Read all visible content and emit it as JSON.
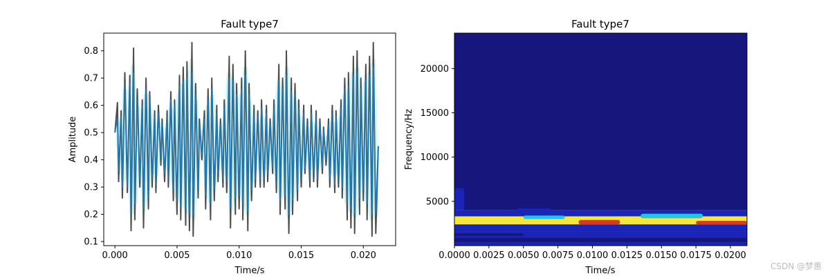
{
  "chart_data": [
    {
      "type": "line",
      "title": "Fault type7",
      "xlabel": "Time/s",
      "ylabel": "Amplitude",
      "xlim": [
        -0.0009,
        0.0226
      ],
      "ylim": [
        0.085,
        0.865
      ],
      "x_ticks": [
        0.0,
        0.005,
        0.01,
        0.015,
        0.02
      ],
      "x_tick_labels": [
        "0.000",
        "0.005",
        "0.010",
        "0.015",
        "0.020"
      ],
      "y_ticks": [
        0.1,
        0.2,
        0.3,
        0.4,
        0.5,
        0.6,
        0.7,
        0.8
      ],
      "y_tick_labels": [
        "0.1",
        "0.2",
        "0.3",
        "0.4",
        "0.5",
        "0.6",
        "0.7",
        "0.8"
      ],
      "grid": false,
      "series": [
        {
          "color": "#4d4d4d",
          "x": [
            0.0,
            0.0002,
            0.0003,
            0.0005,
            0.0006,
            0.0008,
            0.001,
            0.0012,
            0.0013,
            0.0015,
            0.0016,
            0.0018,
            0.002,
            0.0022,
            0.0023,
            0.0025,
            0.0027,
            0.0028,
            0.003,
            0.0032,
            0.0033,
            0.0035,
            0.0037,
            0.0038,
            0.004,
            0.0042,
            0.0043,
            0.0045,
            0.0047,
            0.0048,
            0.005,
            0.0052,
            0.0053,
            0.0055,
            0.0057,
            0.0058,
            0.006,
            0.0062,
            0.0063,
            0.0065,
            0.0067,
            0.0068,
            0.007,
            0.0072,
            0.0073,
            0.0075,
            0.0077,
            0.0078,
            0.008,
            0.0082,
            0.0083,
            0.0085,
            0.0087,
            0.0088,
            0.009,
            0.0092,
            0.0093,
            0.0095,
            0.0097,
            0.0098,
            0.01,
            0.0102,
            0.0103,
            0.0105,
            0.0107,
            0.0108,
            0.011,
            0.0112,
            0.0113,
            0.0115,
            0.0117,
            0.0118,
            0.012,
            0.0122,
            0.0123,
            0.0125,
            0.0127,
            0.0128,
            0.013,
            0.0132,
            0.0133,
            0.0135,
            0.0137,
            0.0138,
            0.014,
            0.0142,
            0.0143,
            0.0145,
            0.0147,
            0.0148,
            0.015,
            0.0152,
            0.0153,
            0.0155,
            0.0157,
            0.0158,
            0.016,
            0.0162,
            0.0163,
            0.0165,
            0.0167,
            0.0168,
            0.017,
            0.0172,
            0.0173,
            0.0175,
            0.0177,
            0.0178,
            0.018,
            0.0182,
            0.0183,
            0.0185,
            0.0187,
            0.0188,
            0.019,
            0.0192,
            0.0193,
            0.0195,
            0.0197,
            0.0198,
            0.02,
            0.0202,
            0.0203,
            0.0205,
            0.0207,
            0.0208,
            0.021,
            0.0212
          ],
          "y": [
            0.5,
            0.61,
            0.32,
            0.58,
            0.26,
            0.72,
            0.28,
            0.71,
            0.14,
            0.81,
            0.18,
            0.66,
            0.3,
            0.62,
            0.15,
            0.7,
            0.22,
            0.65,
            0.3,
            0.58,
            0.28,
            0.6,
            0.38,
            0.55,
            0.32,
            0.58,
            0.3,
            0.65,
            0.25,
            0.62,
            0.2,
            0.71,
            0.18,
            0.74,
            0.16,
            0.76,
            0.14,
            0.83,
            0.12,
            0.68,
            0.26,
            0.55,
            0.4,
            0.58,
            0.22,
            0.66,
            0.18,
            0.7,
            0.25,
            0.6,
            0.32,
            0.55,
            0.3,
            0.62,
            0.28,
            0.78,
            0.15,
            0.75,
            0.2,
            0.68,
            0.22,
            0.7,
            0.18,
            0.8,
            0.14,
            0.68,
            0.25,
            0.6,
            0.3,
            0.58,
            0.3,
            0.62,
            0.3,
            0.6,
            0.32,
            0.55,
            0.35,
            0.62,
            0.28,
            0.75,
            0.2,
            0.7,
            0.22,
            0.8,
            0.13,
            0.7,
            0.2,
            0.68,
            0.25,
            0.62,
            0.3,
            0.6,
            0.35,
            0.55,
            0.3,
            0.6,
            0.32,
            0.58,
            0.3,
            0.55,
            0.35,
            0.52,
            0.38,
            0.55,
            0.3,
            0.6,
            0.28,
            0.58,
            0.3,
            0.62,
            0.26,
            0.7,
            0.18,
            0.72,
            0.15,
            0.78,
            0.13,
            0.8,
            0.2,
            0.7,
            0.25,
            0.75,
            0.18,
            0.78,
            0.12,
            0.83,
            0.13,
            0.45
          ]
        },
        {
          "color": "#1f77b4",
          "x": [
            0.0,
            0.0002,
            0.0003,
            0.0005,
            0.0006,
            0.0008,
            0.001,
            0.0012,
            0.0013,
            0.0015,
            0.0016,
            0.0018,
            0.002,
            0.0022,
            0.0023,
            0.0025,
            0.0027,
            0.0028,
            0.003,
            0.0032,
            0.0033,
            0.0035,
            0.0037,
            0.0038,
            0.004,
            0.0042,
            0.0043,
            0.0045,
            0.0047,
            0.0048,
            0.005,
            0.0052,
            0.0053,
            0.0055,
            0.0057,
            0.0058,
            0.006,
            0.0062,
            0.0063,
            0.0065,
            0.0067,
            0.0068,
            0.007,
            0.0072,
            0.0073,
            0.0075,
            0.0077,
            0.0078,
            0.008,
            0.0082,
            0.0083,
            0.0085,
            0.0087,
            0.0088,
            0.009,
            0.0092,
            0.0093,
            0.0095,
            0.0097,
            0.0098,
            0.01,
            0.0102,
            0.0103,
            0.0105,
            0.0107,
            0.0108,
            0.011,
            0.0112,
            0.0113,
            0.0115,
            0.0117,
            0.0118,
            0.012,
            0.0122,
            0.0123,
            0.0125,
            0.0127,
            0.0128,
            0.013,
            0.0132,
            0.0133,
            0.0135,
            0.0137,
            0.0138,
            0.014,
            0.0142,
            0.0143,
            0.0145,
            0.0147,
            0.0148,
            0.015,
            0.0152,
            0.0153,
            0.0155,
            0.0157,
            0.0158,
            0.016,
            0.0162,
            0.0163,
            0.0165,
            0.0167,
            0.0168,
            0.017,
            0.0172,
            0.0173,
            0.0175,
            0.0177,
            0.0178,
            0.018,
            0.0182,
            0.0183,
            0.0185,
            0.0187,
            0.0188,
            0.019,
            0.0192,
            0.0193,
            0.0195,
            0.0197,
            0.0198,
            0.02,
            0.0202,
            0.0203,
            0.0205,
            0.0207,
            0.0208,
            0.021,
            0.0212
          ],
          "y": [
            0.5,
            0.55,
            0.36,
            0.56,
            0.3,
            0.68,
            0.3,
            0.68,
            0.2,
            0.72,
            0.24,
            0.62,
            0.33,
            0.6,
            0.22,
            0.66,
            0.26,
            0.62,
            0.33,
            0.56,
            0.31,
            0.57,
            0.41,
            0.53,
            0.35,
            0.56,
            0.33,
            0.62,
            0.29,
            0.6,
            0.25,
            0.67,
            0.23,
            0.69,
            0.22,
            0.7,
            0.2,
            0.72,
            0.2,
            0.64,
            0.3,
            0.53,
            0.42,
            0.55,
            0.27,
            0.62,
            0.24,
            0.66,
            0.29,
            0.57,
            0.35,
            0.53,
            0.33,
            0.59,
            0.32,
            0.7,
            0.22,
            0.69,
            0.26,
            0.64,
            0.27,
            0.66,
            0.24,
            0.71,
            0.21,
            0.64,
            0.29,
            0.57,
            0.33,
            0.56,
            0.33,
            0.59,
            0.33,
            0.57,
            0.35,
            0.53,
            0.37,
            0.59,
            0.31,
            0.69,
            0.25,
            0.66,
            0.27,
            0.71,
            0.2,
            0.65,
            0.25,
            0.64,
            0.29,
            0.59,
            0.33,
            0.57,
            0.37,
            0.53,
            0.33,
            0.57,
            0.35,
            0.56,
            0.33,
            0.53,
            0.37,
            0.51,
            0.4,
            0.53,
            0.33,
            0.57,
            0.31,
            0.56,
            0.33,
            0.59,
            0.3,
            0.66,
            0.24,
            0.67,
            0.22,
            0.71,
            0.2,
            0.72,
            0.26,
            0.66,
            0.29,
            0.69,
            0.24,
            0.71,
            0.2,
            0.74,
            0.2,
            0.45
          ]
        }
      ],
      "envelope_color": "#c9f4f4"
    },
    {
      "type": "heatmap",
      "title": "Fault type7",
      "xlabel": "Time/s",
      "ylabel": "Frequency/Hz",
      "xlim": [
        0.0,
        0.0212
      ],
      "ylim": [
        0,
        24000
      ],
      "x_ticks": [
        0.0,
        0.0025,
        0.005,
        0.0075,
        0.01,
        0.0125,
        0.015,
        0.0175,
        0.02
      ],
      "x_tick_labels": [
        "0.0000",
        "0.0025",
        "0.0050",
        "0.0075",
        "0.0100",
        "0.0125",
        "0.0150",
        "0.0175",
        "0.0200"
      ],
      "y_ticks": [
        5000,
        10000,
        15000,
        20000
      ],
      "y_tick_labels": [
        "5000",
        "10000",
        "15000",
        "20000"
      ],
      "grid": false,
      "colormap": [
        "#16167c",
        "#1a25b8",
        "#1e44e0",
        "#22c4e8",
        "#f4e83c",
        "#d93a1e"
      ],
      "bands": [
        {
          "f0": 9000,
          "f1": 24000,
          "level": 0.0
        },
        {
          "f0": 4000,
          "f1": 9000,
          "level": 0.08
        },
        {
          "f0": 3300,
          "f1": 4000,
          "level": 0.18
        },
        {
          "f0": 2400,
          "f1": 3300,
          "level": 0.7
        },
        {
          "f0": 1600,
          "f1": 2400,
          "level": 0.22
        },
        {
          "f0": 0,
          "f1": 1600,
          "level": 0.12
        }
      ],
      "patches": [
        {
          "t0": 0.0,
          "t1": 0.0007,
          "f0": 4000,
          "f1": 6500,
          "level": 0.12
        },
        {
          "t0": 0.0015,
          "t1": 0.0035,
          "f0": 5200,
          "f1": 6500,
          "level": 0.0
        },
        {
          "t0": 0.004,
          "t1": 0.0055,
          "f0": 6500,
          "f1": 7800,
          "level": 0.0
        },
        {
          "t0": 0.0065,
          "t1": 0.0095,
          "f0": 6400,
          "f1": 7800,
          "level": 0.0
        },
        {
          "t0": 0.0055,
          "t1": 0.0075,
          "f0": 5300,
          "f1": 6200,
          "level": 0.0
        },
        {
          "t0": 0.0095,
          "t1": 0.0115,
          "f0": 5200,
          "f1": 6800,
          "level": 0.0
        },
        {
          "t0": 0.0125,
          "t1": 0.0145,
          "f0": 6500,
          "f1": 7800,
          "level": 0.0
        },
        {
          "t0": 0.012,
          "t1": 0.0135,
          "f0": 5200,
          "f1": 6300,
          "level": 0.0
        },
        {
          "t0": 0.015,
          "t1": 0.0175,
          "f0": 5200,
          "f1": 6400,
          "level": 0.0
        },
        {
          "t0": 0.0175,
          "t1": 0.0185,
          "f0": 6500,
          "f1": 7500,
          "level": 0.0
        },
        {
          "t0": 0.0185,
          "t1": 0.0212,
          "f0": 5200,
          "f1": 6400,
          "level": 0.0
        },
        {
          "t0": 0.0045,
          "t1": 0.007,
          "f0": 3500,
          "f1": 4200,
          "level": 0.28
        },
        {
          "t0": 0.009,
          "t1": 0.012,
          "f0": 2400,
          "f1": 2900,
          "level": 1.0
        },
        {
          "t0": 0.0005,
          "t1": 0.003,
          "f0": 2500,
          "f1": 2900,
          "level": 0.88
        },
        {
          "t0": 0.0175,
          "t1": 0.0212,
          "f0": 2400,
          "f1": 2800,
          "level": 0.9
        },
        {
          "t0": 0.0135,
          "t1": 0.018,
          "f0": 3100,
          "f1": 3600,
          "level": 0.55
        },
        {
          "t0": 0.005,
          "t1": 0.008,
          "f0": 3000,
          "f1": 3400,
          "level": 0.5
        },
        {
          "t0": 0.0,
          "t1": 0.0212,
          "f0": 400,
          "f1": 900,
          "level": 0.0
        },
        {
          "t0": 0.0,
          "t1": 0.005,
          "f0": 1100,
          "f1": 1400,
          "level": 0.05
        }
      ]
    }
  ],
  "watermark": "CSDN @梦惠"
}
